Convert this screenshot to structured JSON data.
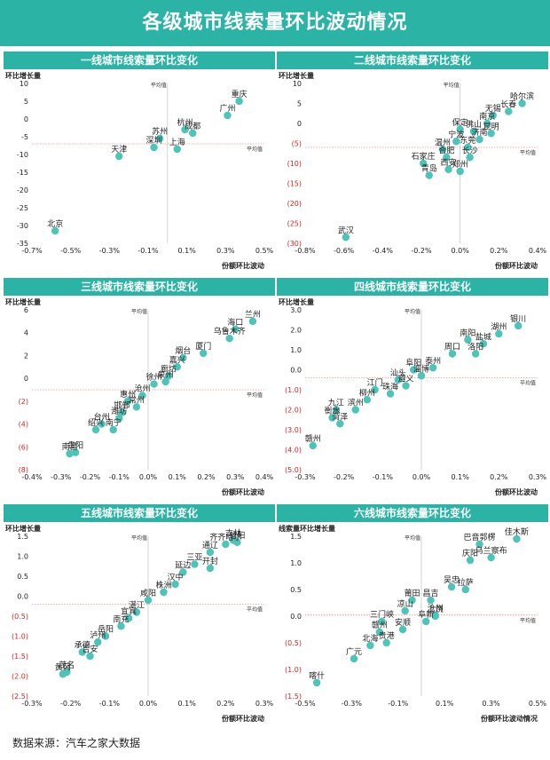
{
  "page": {
    "title": "各级城市线索量环比波动情况",
    "source": "数据来源：汽车之家大数据"
  },
  "chart_data": [
    {
      "type": "scatter",
      "title": "一线城市线索量环比变化",
      "xlabel": "份额环比波动",
      "ylabel": "环比增长量",
      "xlim": [
        -0.7,
        0.5
      ],
      "ylim": [
        -35,
        10
      ],
      "xticks": [
        "-0.7%",
        "-0.5%",
        "-0.3%",
        "-0.1%",
        "0.1%",
        "0.3%",
        "0.5%"
      ],
      "xtick_values": [
        -0.7,
        -0.5,
        -0.3,
        -0.1,
        0.1,
        0.3,
        0.5
      ],
      "yticks": [
        "10",
        "5",
        "0",
        "-5",
        "-10",
        "-15",
        "-20",
        "-25",
        "-30",
        "-35"
      ],
      "ytick_values": [
        10,
        5,
        0,
        -5,
        -10,
        -15,
        -20,
        -25,
        -30,
        -35
      ],
      "mean_x": 0.0,
      "mean_y": -7.0,
      "mean_label": "平均值",
      "points": [
        {
          "label": "北京",
          "x": -0.58,
          "y": -31.5
        },
        {
          "label": "天津",
          "x": -0.25,
          "y": -10.5
        },
        {
          "label": "苏州",
          "x": -0.04,
          "y": -5.5
        },
        {
          "label": "深圳",
          "x": -0.07,
          "y": -8.0
        },
        {
          "label": "上海",
          "x": 0.05,
          "y": -8.5
        },
        {
          "label": "杭州",
          "x": 0.09,
          "y": -3.0
        },
        {
          "label": "成都",
          "x": 0.13,
          "y": -4.0
        },
        {
          "label": "广州",
          "x": 0.31,
          "y": 1.0
        },
        {
          "label": "重庆",
          "x": 0.37,
          "y": 5.0
        }
      ]
    },
    {
      "type": "scatter",
      "title": "二线城市线索量环比变化",
      "xlabel": "份额环比波动",
      "ylabel": "环比增长量",
      "xlim": [
        -0.8,
        0.4
      ],
      "ylim": [
        -30,
        10
      ],
      "xticks": [
        "-0.8%",
        "-0.6%",
        "-0.4%",
        "-0.2%",
        "0.0%",
        "0.2%",
        "0.4%"
      ],
      "xtick_values": [
        -0.8,
        -0.6,
        -0.4,
        -0.2,
        0.0,
        0.2,
        0.4
      ],
      "yticks": [
        "10",
        "5",
        "0",
        "(5)",
        "(10)",
        "(15)",
        "(20)",
        "(25)",
        "(30)"
      ],
      "ytick_values": [
        10,
        5,
        0,
        -5,
        -10,
        -15,
        -20,
        -25,
        -30
      ],
      "mean_x": 0.0,
      "mean_y": -6.0,
      "mean_label": "平均值",
      "points": [
        {
          "label": "武汉",
          "x": -0.59,
          "y": -28.5
        },
        {
          "label": "石家庄",
          "x": -0.19,
          "y": -10.0
        },
        {
          "label": "青岛",
          "x": -0.16,
          "y": -13.0
        },
        {
          "label": "温州",
          "x": -0.09,
          "y": -6.5
        },
        {
          "label": "合肥",
          "x": -0.07,
          "y": -8.5
        },
        {
          "label": "西安",
          "x": -0.06,
          "y": -11.5
        },
        {
          "label": "宁波",
          "x": -0.02,
          "y": -4.5
        },
        {
          "label": "保定",
          "x": 0.0,
          "y": -1.5
        },
        {
          "label": "郑州",
          "x": 0.0,
          "y": -12.0
        },
        {
          "label": "东莞",
          "x": 0.04,
          "y": -6.0
        },
        {
          "label": "长沙",
          "x": 0.05,
          "y": -8.5
        },
        {
          "label": "佛山",
          "x": 0.07,
          "y": -2.0
        },
        {
          "label": "济南",
          "x": 0.1,
          "y": -4.0
        },
        {
          "label": "南京",
          "x": 0.14,
          "y": 0.0
        },
        {
          "label": "昆明",
          "x": 0.16,
          "y": -2.5
        },
        {
          "label": "无锡",
          "x": 0.17,
          "y": 2.0
        },
        {
          "label": "长春",
          "x": 0.25,
          "y": 3.0
        },
        {
          "label": "哈尔滨",
          "x": 0.32,
          "y": 5.0
        }
      ]
    },
    {
      "type": "scatter",
      "title": "三线城市线索量环比变化",
      "xlabel": "份额环比波动",
      "ylabel": "环比增长量",
      "xlim": [
        -0.4,
        0.4
      ],
      "ylim": [
        -8,
        6
      ],
      "xticks": [
        "-0.4%",
        "-0.3%",
        "-0.2%",
        "-0.1%",
        "0.0%",
        "0.1%",
        "0.2%",
        "0.3%",
        "0.4%"
      ],
      "xtick_values": [
        -0.4,
        -0.3,
        -0.2,
        -0.1,
        0.0,
        0.1,
        0.2,
        0.3,
        0.4
      ],
      "yticks": [
        "6",
        "4",
        "2",
        "0",
        "(2)",
        "(4)",
        "(6)",
        "(8)"
      ],
      "ytick_values": [
        6,
        4,
        2,
        0,
        -2,
        -4,
        -6,
        -8
      ],
      "mean_x": 0.0,
      "mean_y": -1.0,
      "mean_label": "平均值",
      "points": [
        {
          "label": "南昌",
          "x": -0.27,
          "y": -6.6
        },
        {
          "label": "贵阳",
          "x": -0.25,
          "y": -6.5
        },
        {
          "label": "绍兴",
          "x": -0.18,
          "y": -4.5
        },
        {
          "label": "台州",
          "x": -0.16,
          "y": -4.0
        },
        {
          "label": "南宁",
          "x": -0.12,
          "y": -4.5
        },
        {
          "label": "潍坊",
          "x": -0.1,
          "y": -3.5
        },
        {
          "label": "邯郸",
          "x": -0.09,
          "y": -3.0
        },
        {
          "label": "惠州",
          "x": -0.07,
          "y": -2.0
        },
        {
          "label": "常州",
          "x": -0.04,
          "y": -2.5
        },
        {
          "label": "沧州",
          "x": -0.02,
          "y": -1.5
        },
        {
          "label": "徐州",
          "x": 0.02,
          "y": -0.5
        },
        {
          "label": "泉州",
          "x": 0.06,
          "y": -0.3
        },
        {
          "label": "廊坊",
          "x": 0.07,
          "y": 0.2
        },
        {
          "label": "嘉兴",
          "x": 0.1,
          "y": 1.0
        },
        {
          "label": "烟台",
          "x": 0.12,
          "y": 1.8
        },
        {
          "label": "厦门",
          "x": 0.19,
          "y": 2.2
        },
        {
          "label": "乌鲁木齐",
          "x": 0.28,
          "y": 3.5
        },
        {
          "label": "海口",
          "x": 0.3,
          "y": 4.3
        },
        {
          "label": "兰州",
          "x": 0.36,
          "y": 5.0
        }
      ]
    },
    {
      "type": "scatter",
      "title": "四线城市线索量环比变化",
      "xlabel": "份额环比波动",
      "ylabel": "环比增长量",
      "xlim": [
        -0.3,
        0.3
      ],
      "ylim": [
        -5,
        3
      ],
      "xticks": [
        "-0.3%",
        "-0.2%",
        "-0.1%",
        "0.0%",
        "0.1%",
        "0.2%",
        "0.3%"
      ],
      "xtick_values": [
        -0.3,
        -0.2,
        -0.1,
        0.0,
        0.1,
        0.2,
        0.3
      ],
      "yticks": [
        "3.0",
        "2.0",
        "1.0",
        "0.0",
        "(1.0)",
        "(2.0)",
        "(3.0)",
        "(4.0)",
        "(5.0)"
      ],
      "ytick_values": [
        3,
        2,
        1,
        0,
        -1,
        -2,
        -3,
        -4,
        -5
      ],
      "mean_x": 0.0,
      "mean_y": -0.4,
      "mean_label": "平均值",
      "points": [
        {
          "label": "赣州",
          "x": -0.28,
          "y": -3.8
        },
        {
          "label": "衡水",
          "x": -0.23,
          "y": -2.4
        },
        {
          "label": "九江",
          "x": -0.22,
          "y": -2.0
        },
        {
          "label": "菏泽",
          "x": -0.21,
          "y": -2.7
        },
        {
          "label": "滨州",
          "x": -0.17,
          "y": -2.0
        },
        {
          "label": "柳州",
          "x": -0.14,
          "y": -1.5
        },
        {
          "label": "江门",
          "x": -0.12,
          "y": -1.0
        },
        {
          "label": "珠海",
          "x": -0.08,
          "y": -1.2
        },
        {
          "label": "汕头",
          "x": -0.06,
          "y": -0.5
        },
        {
          "label": "遵义",
          "x": -0.04,
          "y": -0.8
        },
        {
          "label": "阜阳",
          "x": -0.02,
          "y": 0.0
        },
        {
          "label": "淄博",
          "x": 0.0,
          "y": -0.3
        },
        {
          "label": "泰州",
          "x": 0.03,
          "y": 0.1
        },
        {
          "label": "周口",
          "x": 0.08,
          "y": 0.8
        },
        {
          "label": "洛阳",
          "x": 0.14,
          "y": 0.8
        },
        {
          "label": "南阳",
          "x": 0.12,
          "y": 1.5
        },
        {
          "label": "盐城",
          "x": 0.16,
          "y": 1.3
        },
        {
          "label": "湖州",
          "x": 0.2,
          "y": 1.8
        },
        {
          "label": "银川",
          "x": 0.25,
          "y": 2.2
        }
      ]
    },
    {
      "type": "scatter",
      "title": "五线城市线索量环比变化",
      "xlabel": "份额环比波动",
      "ylabel": "环比增长量",
      "xlim": [
        -0.3,
        0.3
      ],
      "ylim": [
        -2.5,
        1.5
      ],
      "xticks": [
        "-0.3%",
        "-0.2%",
        "-0.1%",
        "0.0%",
        "0.1%",
        "0.2%",
        "0.3%"
      ],
      "xtick_values": [
        -0.3,
        -0.2,
        -0.1,
        0.0,
        0.1,
        0.2,
        0.3
      ],
      "yticks": [
        "1.5",
        "1.0",
        "0.5",
        "0.0",
        "(0.5)",
        "(1.0)",
        "(1.5)",
        "(2.0)",
        "(2.5)"
      ],
      "ytick_values": [
        1.5,
        1.0,
        0.5,
        0.0,
        -0.5,
        -1.0,
        -1.5,
        -2.0,
        -2.5
      ],
      "mean_x": 0.0,
      "mean_y": -0.2,
      "mean_label": "平均值",
      "points": [
        {
          "label": "黄冈",
          "x": -0.22,
          "y": -1.95
        },
        {
          "label": "茂名",
          "x": -0.21,
          "y": -1.9
        },
        {
          "label": "承德",
          "x": -0.17,
          "y": -1.4
        },
        {
          "label": "吉安",
          "x": -0.15,
          "y": -1.5
        },
        {
          "label": "泸州",
          "x": -0.13,
          "y": -1.15
        },
        {
          "label": "岳阳",
          "x": -0.11,
          "y": -1.0
        },
        {
          "label": "南充",
          "x": -0.07,
          "y": -0.75
        },
        {
          "label": "宜宾",
          "x": -0.05,
          "y": -0.55
        },
        {
          "label": "湛江",
          "x": -0.03,
          "y": -0.4
        },
        {
          "label": "咸阳",
          "x": 0.0,
          "y": -0.1
        },
        {
          "label": "株洲",
          "x": 0.04,
          "y": 0.1
        },
        {
          "label": "汉中",
          "x": 0.07,
          "y": 0.3
        },
        {
          "label": "延边",
          "x": 0.09,
          "y": 0.6
        },
        {
          "label": "三亚",
          "x": 0.12,
          "y": 0.8
        },
        {
          "label": "开封",
          "x": 0.16,
          "y": 0.7
        },
        {
          "label": "通辽",
          "x": 0.16,
          "y": 1.1
        },
        {
          "label": "齐齐哈尔",
          "x": 0.2,
          "y": 1.3
        },
        {
          "label": "吉林",
          "x": 0.22,
          "y": 1.4
        },
        {
          "label": "信阳",
          "x": 0.23,
          "y": 1.35
        }
      ]
    },
    {
      "type": "scatter",
      "title": "六线城市线索量环比变化",
      "xlabel": "份额环比波动情况",
      "ylabel": "线索量环比增长量",
      "xlim": [
        -0.5,
        0.5
      ],
      "ylim": [
        -1.5,
        1.5
      ],
      "xticks": [
        "-0.5%",
        "-0.3%",
        "-0.1%",
        "0.1%",
        "0.3%",
        "0.5%"
      ],
      "xtick_values": [
        -0.5,
        -0.3,
        -0.1,
        0.1,
        0.3,
        0.5
      ],
      "yticks": [
        "1.5",
        "1.0",
        "0.5",
        "0.0",
        "(0.5)",
        "(1.0)",
        "(1.5)"
      ],
      "ytick_values": [
        1.5,
        1.0,
        0.5,
        0.0,
        -0.5,
        -1.0,
        -1.5
      ],
      "mean_x": 0.0,
      "mean_y": 0.02,
      "mean_label": "平均值",
      "points": [
        {
          "label": "喀什",
          "x": -0.45,
          "y": -1.25
        },
        {
          "label": "广元",
          "x": -0.29,
          "y": -0.8
        },
        {
          "label": "北海",
          "x": -0.22,
          "y": -0.55
        },
        {
          "label": "贵港",
          "x": -0.15,
          "y": -0.5
        },
        {
          "label": "赣州",
          "x": -0.18,
          "y": -0.3
        },
        {
          "label": "安顺",
          "x": -0.08,
          "y": -0.25
        },
        {
          "label": "三门峡",
          "x": -0.17,
          "y": -0.1
        },
        {
          "label": "阜新",
          "x": 0.02,
          "y": -0.1
        },
        {
          "label": "上饶",
          "x": 0.06,
          "y": 0.0
        },
        {
          "label": "凉山",
          "x": -0.07,
          "y": 0.1
        },
        {
          "label": "沧州",
          "x": 0.06,
          "y": 0.02
        },
        {
          "label": "莆田",
          "x": -0.04,
          "y": 0.3
        },
        {
          "label": "昌吉",
          "x": 0.04,
          "y": 0.3
        },
        {
          "label": "吴忠",
          "x": 0.13,
          "y": 0.55
        },
        {
          "label": "拉萨",
          "x": 0.19,
          "y": 0.5
        },
        {
          "label": "庆阳",
          "x": 0.21,
          "y": 1.05
        },
        {
          "label": "巴音郭楞",
          "x": 0.25,
          "y": 1.35
        },
        {
          "label": "乌兰察布",
          "x": 0.3,
          "y": 1.1
        },
        {
          "label": "佳木斯",
          "x": 0.41,
          "y": 1.45
        }
      ]
    }
  ]
}
